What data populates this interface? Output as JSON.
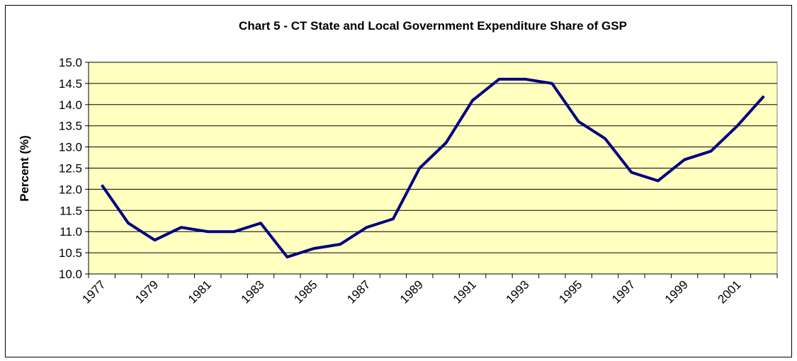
{
  "chart_data": {
    "type": "line",
    "title": "Chart 5 - CT State and Local Government Expenditure Share of GSP",
    "y_label": "Percent (%)",
    "categories": [
      "1977",
      null,
      "1979",
      null,
      "1981",
      null,
      "1983",
      null,
      "1985",
      null,
      "1987",
      null,
      "1989",
      null,
      "1991",
      null,
      "1993",
      null,
      "1995",
      null,
      "1997",
      null,
      "1999",
      null,
      "2001",
      null
    ],
    "series": [
      {
        "name": "Expenditure Share of GSP",
        "color": "#000080",
        "values": [
          12.1,
          11.2,
          10.8,
          11.1,
          11.0,
          11.0,
          11.2,
          10.4,
          10.6,
          10.7,
          11.1,
          11.3,
          12.5,
          13.1,
          14.1,
          14.6,
          14.6,
          14.5,
          13.6,
          13.2,
          12.4,
          12.2,
          12.7,
          12.9,
          13.5,
          14.2
        ]
      }
    ],
    "ylim": [
      10,
      15
    ],
    "yticks": [
      {
        "value": 10,
        "label": "10.0"
      },
      10.5,
      {
        "value": 11,
        "label": "11.0"
      },
      11.5,
      {
        "value": 12,
        "label": "12.0"
      },
      12.5,
      {
        "value": 13,
        "label": "13.0"
      },
      13.5,
      {
        "value": 14,
        "label": "14.0"
      },
      14.5,
      {
        "value": 15,
        "label": "15.0"
      }
    ],
    "grid": true,
    "plot_background": "#ffffc0"
  }
}
